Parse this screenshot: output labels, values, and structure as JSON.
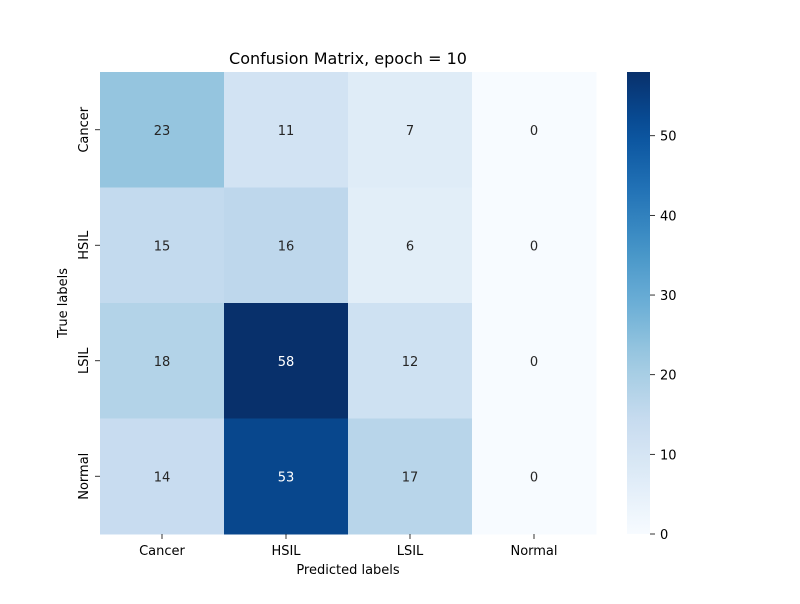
{
  "chart_data": {
    "type": "heatmap",
    "title": "Confusion Matrix, epoch = 10",
    "xlabel": "Predicted labels",
    "ylabel": "True labels",
    "x_categories": [
      "Cancer",
      "HSIL",
      "LSIL",
      "Normal"
    ],
    "y_categories": [
      "Cancer",
      "HSIL",
      "LSIL",
      "Normal"
    ],
    "values": [
      [
        23,
        11,
        7,
        0
      ],
      [
        15,
        16,
        6,
        0
      ],
      [
        18,
        58,
        12,
        0
      ],
      [
        14,
        53,
        17,
        0
      ]
    ],
    "colormap": "Blues",
    "color_range": [
      0,
      58
    ],
    "colorbar_ticks": [
      "0",
      "10",
      "20",
      "30",
      "40",
      "50"
    ],
    "colorbar_tick_values": [
      0,
      10,
      20,
      30,
      40,
      50
    ],
    "annotated": true,
    "grid": false
  }
}
